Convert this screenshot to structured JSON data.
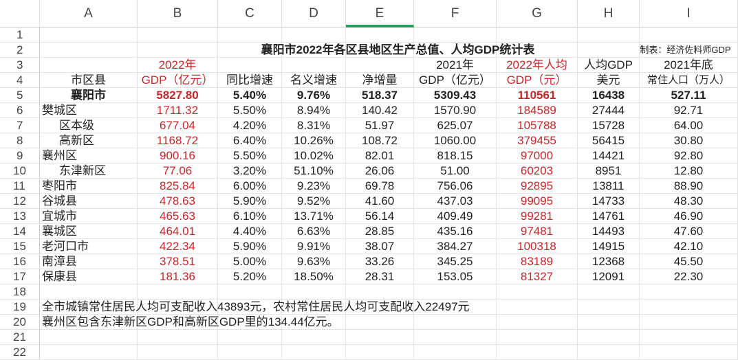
{
  "columns": [
    "A",
    "B",
    "C",
    "D",
    "E",
    "F",
    "G",
    "H",
    "I"
  ],
  "selected_column": "E",
  "row_numbers": [
    "1",
    "2",
    "3",
    "4",
    "5",
    "6",
    "7",
    "8",
    "9",
    "10",
    "11",
    "12",
    "13",
    "14",
    "15",
    "16",
    "17",
    "18",
    "19",
    "20",
    "21",
    "22"
  ],
  "title": "襄阳市2022年各区县地区生产总值、人均GDP统计表",
  "credit": "制表：经济佐料师GDP",
  "header_row3": [
    "",
    "2022年",
    "",
    "",
    "",
    "2021年",
    "2022年人均",
    "人均GDP",
    "2021年底"
  ],
  "header_row4": [
    "市区县",
    "GDP（亿元）",
    "同比增速",
    "名义增速",
    "净增量",
    "GDP（亿元）",
    "GDP（元）",
    "美元",
    "常住人口（万人）"
  ],
  "rows": [
    {
      "name": "襄阳市",
      "indent": false,
      "total": true,
      "values": [
        "5827.80",
        "5.40%",
        "9.76%",
        "518.37",
        "5309.43",
        "110561",
        "16438",
        "527.11"
      ]
    },
    {
      "name": "樊城区",
      "indent": false,
      "values": [
        "1711.32",
        "5.50%",
        "8.94%",
        "140.42",
        "1570.90",
        "184589",
        "27444",
        "92.71"
      ]
    },
    {
      "name": "区本级",
      "indent": true,
      "values": [
        "677.04",
        "4.20%",
        "8.31%",
        "51.97",
        "625.07",
        "105788",
        "15728",
        "64.00"
      ]
    },
    {
      "name": "高新区",
      "indent": true,
      "values": [
        "1168.72",
        "6.40%",
        "10.26%",
        "108.72",
        "1060.00",
        "379455",
        "56415",
        "30.80"
      ]
    },
    {
      "name": "襄州区",
      "indent": false,
      "values": [
        "900.16",
        "5.50%",
        "10.02%",
        "82.01",
        "818.15",
        "97000",
        "14421",
        "92.80"
      ]
    },
    {
      "name": "东津新区",
      "indent": true,
      "values": [
        "77.06",
        "3.20%",
        "51.10%",
        "26.06",
        "51.00",
        "60203",
        "8951",
        "12.80"
      ]
    },
    {
      "name": "枣阳市",
      "indent": false,
      "values": [
        "825.84",
        "6.00%",
        "9.23%",
        "69.78",
        "756.06",
        "92895",
        "13811",
        "88.90"
      ]
    },
    {
      "name": "谷城县",
      "indent": false,
      "values": [
        "478.63",
        "5.90%",
        "9.52%",
        "41.60",
        "437.03",
        "99095",
        "14733",
        "48.30"
      ]
    },
    {
      "name": "宜城市",
      "indent": false,
      "values": [
        "465.63",
        "6.10%",
        "13.71%",
        "56.14",
        "409.49",
        "99281",
        "14761",
        "46.90"
      ]
    },
    {
      "name": "襄城区",
      "indent": false,
      "values": [
        "464.01",
        "4.40%",
        "6.63%",
        "28.85",
        "435.16",
        "97481",
        "14493",
        "47.60"
      ]
    },
    {
      "name": "老河口市",
      "indent": false,
      "values": [
        "422.34",
        "5.90%",
        "9.91%",
        "38.07",
        "384.27",
        "100318",
        "14915",
        "42.10"
      ]
    },
    {
      "name": "南漳县",
      "indent": false,
      "values": [
        "378.51",
        "5.00%",
        "9.63%",
        "33.26",
        "345.25",
        "83189",
        "12368",
        "45.50"
      ]
    },
    {
      "name": "保康县",
      "indent": false,
      "values": [
        "181.36",
        "5.20%",
        "18.50%",
        "28.31",
        "153.05",
        "81327",
        "12091",
        "22.30"
      ]
    }
  ],
  "notes": [
    "全市城镇常住居民人均可支配收入43893元，农村常住居民人均可支配收入22497元",
    "襄州区包含东津新区GDP和高新区GDP里的134.44亿元。"
  ],
  "colors": {
    "red_text": "#c8262b",
    "selected_column_accent": "#1f9e5a"
  }
}
